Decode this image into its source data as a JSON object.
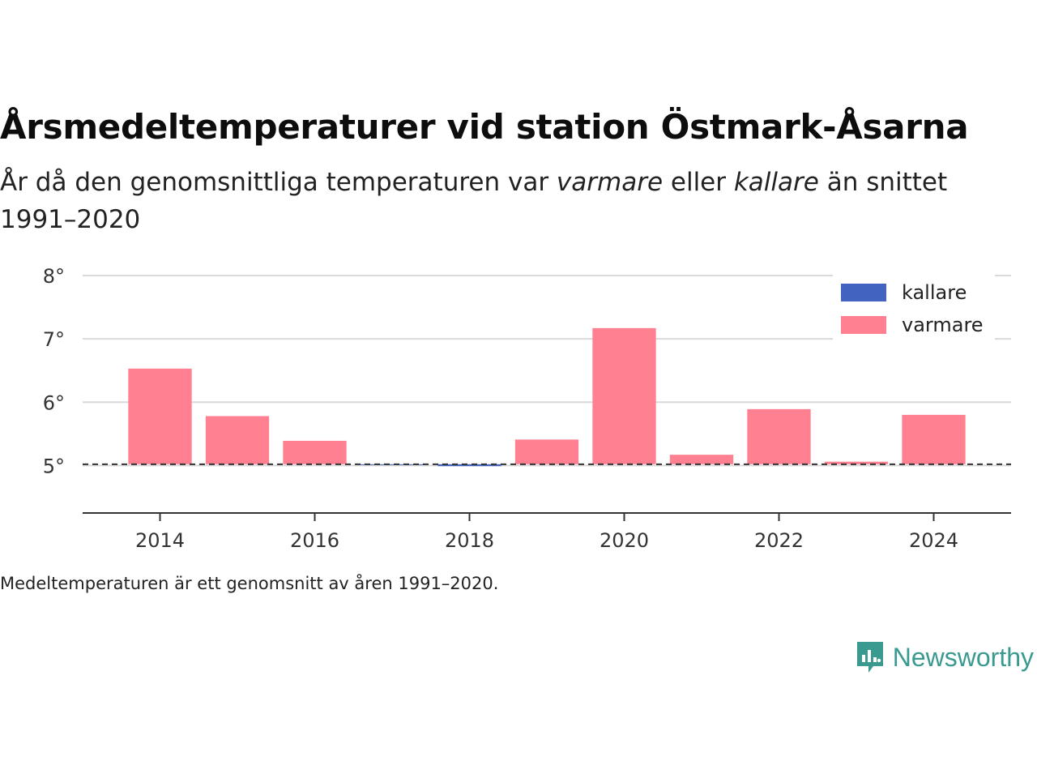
{
  "title": "Årsmedeltemperaturer vid station Östmark-Åsarna",
  "subtitle": {
    "part1": "År då den genomsnittliga temperaturen var ",
    "warm": "varmare",
    "part2": " eller ",
    "cold": "kallare",
    "part3": " än snittet 1991–2020"
  },
  "caption": "Medeltemperaturen är ett genomsnitt av åren 1991–2020.",
  "brand": {
    "name": "Newsworthy",
    "icon": "newsworthy-logo-icon",
    "color": "#3a9a8f"
  },
  "chart_data": {
    "type": "bar",
    "x": [
      2014,
      2015,
      2016,
      2017,
      2018,
      2019,
      2020,
      2021,
      2022,
      2023,
      2024
    ],
    "values": [
      6.53,
      5.78,
      5.39,
      5.01,
      4.99,
      5.41,
      7.17,
      5.17,
      5.89,
      5.06,
      5.8
    ],
    "baseline": 5.02,
    "xlim": [
      2013.0,
      2025.0
    ],
    "ylim": [
      4.25,
      8.0
    ],
    "y_ticks": [
      5,
      6,
      7,
      8
    ],
    "y_tick_labels": [
      "5°",
      "6°",
      "7°",
      "8°"
    ],
    "x_ticks": [
      2014,
      2016,
      2018,
      2020,
      2022,
      2024
    ],
    "x_tick_labels": [
      "2014",
      "2016",
      "2018",
      "2020",
      "2022",
      "2024"
    ],
    "grid": true,
    "legend_position": "top-right",
    "series": [
      {
        "name": "kallare",
        "color": "#4264c0"
      },
      {
        "name": "varmare",
        "color": "#ff8191"
      }
    ]
  }
}
